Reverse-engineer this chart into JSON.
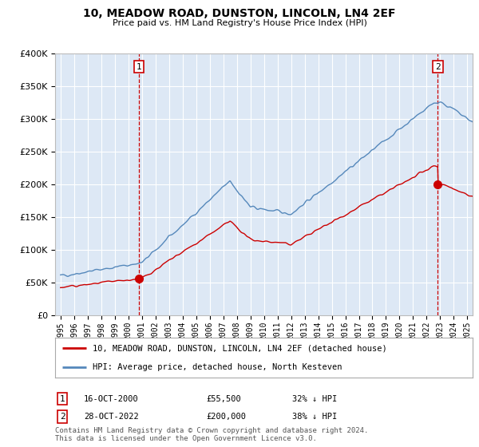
{
  "title": "10, MEADOW ROAD, DUNSTON, LINCOLN, LN4 2EF",
  "subtitle": "Price paid vs. HM Land Registry's House Price Index (HPI)",
  "bg_color": "#ffffff",
  "plot_bg_color": "#dde8f5",
  "grid_color": "#ffffff",
  "red_line_color": "#cc0000",
  "blue_line_color": "#5588bb",
  "legend_label_red": "10, MEADOW ROAD, DUNSTON, LINCOLN, LN4 2EF (detached house)",
  "legend_label_blue": "HPI: Average price, detached house, North Kesteven",
  "sale1_date_num": 2000.79,
  "sale1_price": 55500,
  "sale1_label": "1",
  "sale2_date_num": 2022.82,
  "sale2_price": 200000,
  "sale2_label": "2",
  "footer1": "Contains HM Land Registry data © Crown copyright and database right 2024.",
  "footer2": "This data is licensed under the Open Government Licence v3.0.",
  "ylim_max": 400000,
  "ylim_min": 0,
  "xlim_min": 1994.6,
  "xlim_max": 2025.4
}
